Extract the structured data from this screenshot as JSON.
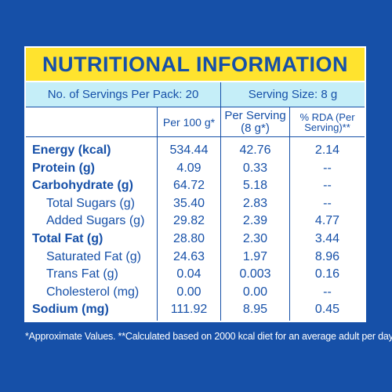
{
  "title": "NUTRITIONAL INFORMATION",
  "servings": {
    "per_pack": "No. of Servings Per Pack: 20",
    "size": "Serving Size: 8 g"
  },
  "columns": {
    "per100": "Per 100 g*",
    "per_serving": "Per Serving (8 g*)",
    "rda": "% RDA (Per Serving)**"
  },
  "rows": [
    {
      "label": "Energy (kcal)",
      "per100": "534.44",
      "per_serving": "42.76",
      "rda": "2.14",
      "bold": true
    },
    {
      "label": "Protein (g)",
      "per100": "4.09",
      "per_serving": "0.33",
      "rda": "--",
      "bold": true
    },
    {
      "label": "Carbohydrate (g)",
      "per100": "64.72",
      "per_serving": "5.18",
      "rda": "--",
      "bold": true
    },
    {
      "label": "Total Sugars (g)",
      "per100": "35.40",
      "per_serving": "2.83",
      "rda": "--",
      "bold": false
    },
    {
      "label": "Added Sugars (g)",
      "per100": "29.82",
      "per_serving": "2.39",
      "rda": "4.77",
      "bold": false
    },
    {
      "label": "Total Fat (g)",
      "per100": "28.80",
      "per_serving": "2.30",
      "rda": "3.44",
      "bold": true
    },
    {
      "label": "Saturated Fat (g)",
      "per100": "24.63",
      "per_serving": "1.97",
      "rda": "8.96",
      "bold": false
    },
    {
      "label": "Trans Fat (g)",
      "per100": "0.04",
      "per_serving": "0.003",
      "rda": "0.16",
      "bold": false
    },
    {
      "label": "Cholesterol (mg)",
      "per100": "0.00",
      "per_serving": "0.00",
      "rda": "--",
      "bold": false
    },
    {
      "label": "Sodium (mg)",
      "per100": "111.92",
      "per_serving": "8.95",
      "rda": "0.45",
      "bold": true
    }
  ],
  "footnote": "*Approximate Values. **Calculated based on 2000 kcal diet for an average adult per day.",
  "colors": {
    "background": "#1650a8",
    "title_bg": "#ffe32e",
    "servings_bg": "#c5eef8",
    "text": "#1650a8"
  }
}
